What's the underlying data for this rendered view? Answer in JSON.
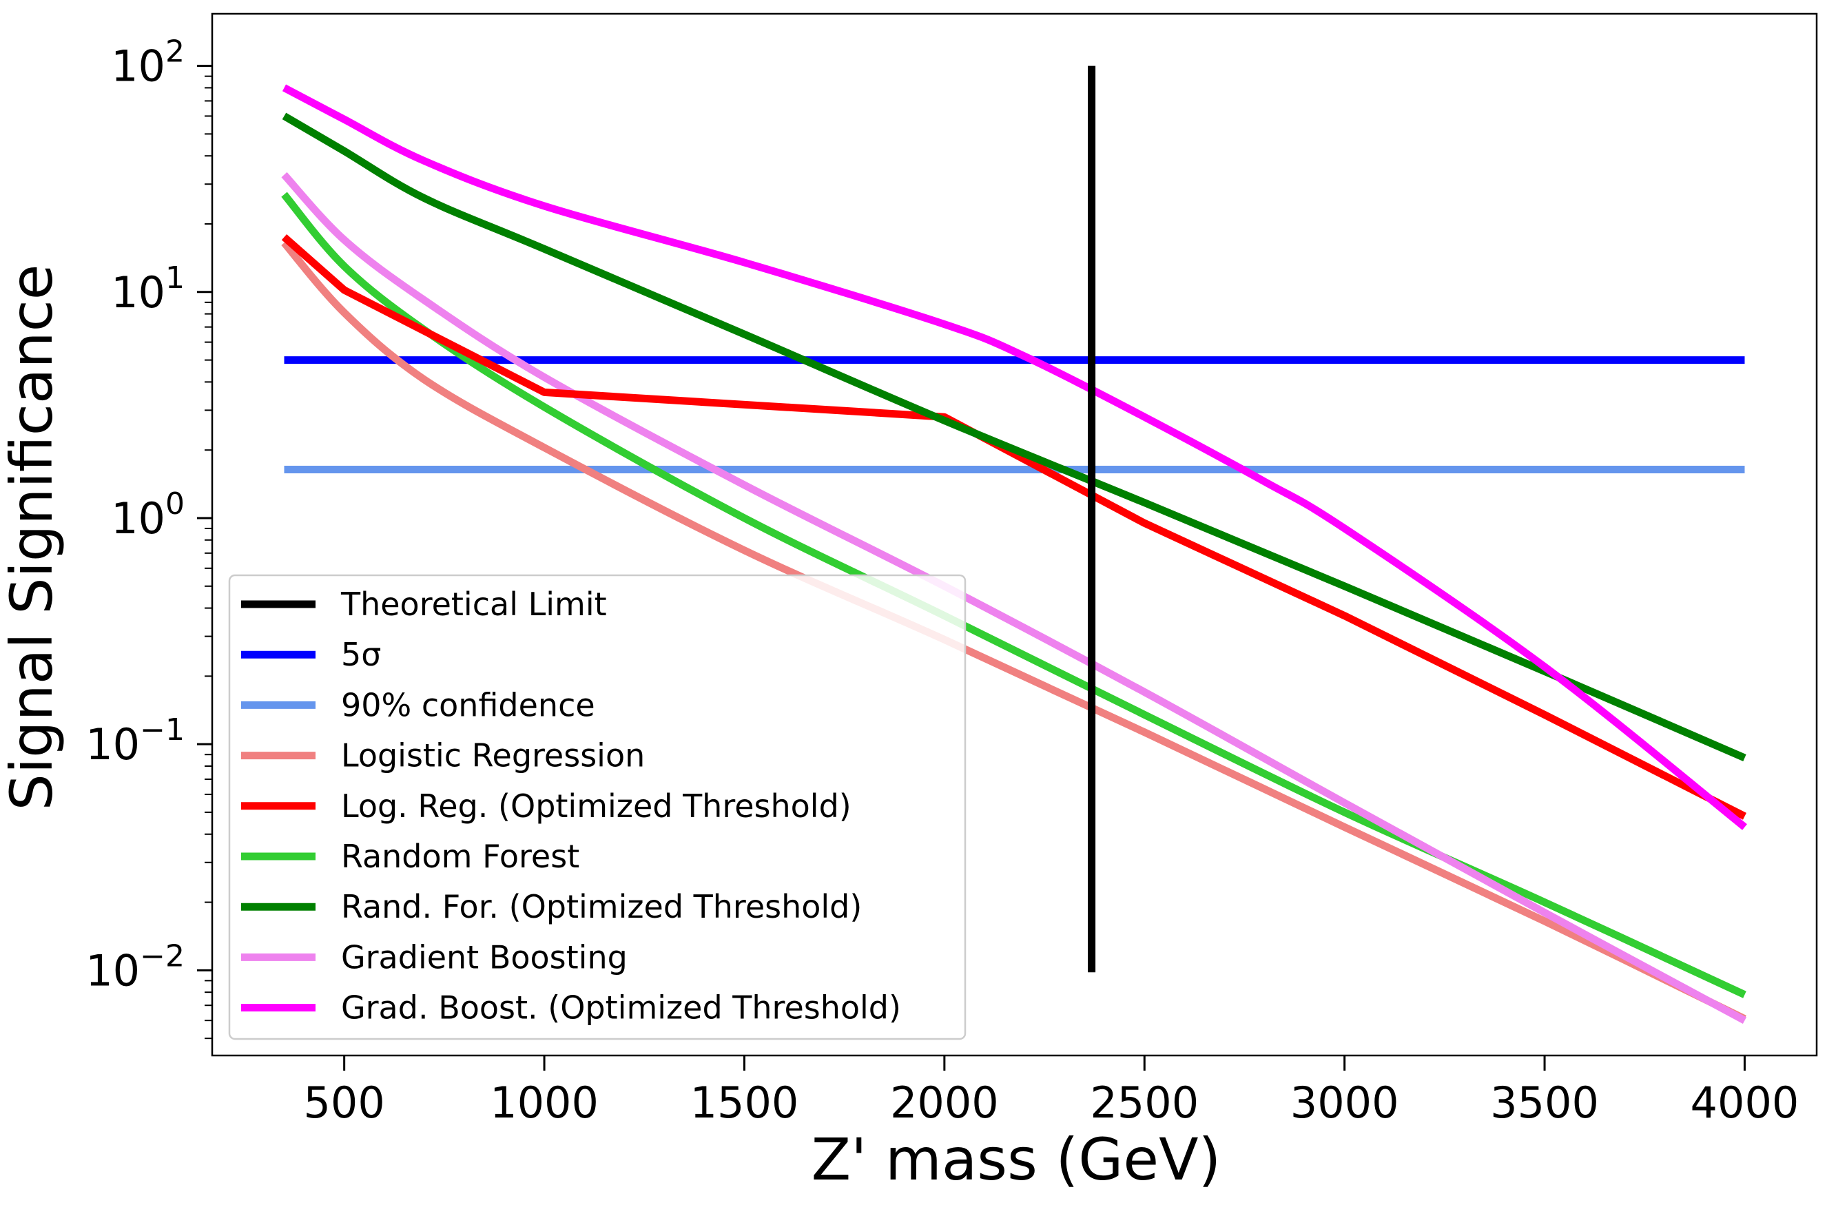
{
  "chart_data": {
    "type": "line",
    "title": "",
    "xlabel": "Z' mass (GeV)",
    "ylabel": "Signal Significance",
    "xlim": [
      170,
      4180
    ],
    "ylim": [
      0.0042,
      170
    ],
    "yscale": "log",
    "xticks": [
      500,
      1000,
      1500,
      2000,
      2500,
      3000,
      3500,
      4000
    ],
    "xtick_labels": [
      "500",
      "1000",
      "1500",
      "2000",
      "2500",
      "3000",
      "3500",
      "4000"
    ],
    "yticks": [
      {
        "value": 100,
        "base": "10",
        "exp": "2"
      },
      {
        "value": 10,
        "base": "10",
        "exp": "1"
      },
      {
        "value": 1,
        "base": "10",
        "exp": "0"
      },
      {
        "value": 0.1,
        "base": "10",
        "exp": "−1"
      },
      {
        "value": 0.01,
        "base": "10",
        "exp": "−2"
      }
    ],
    "grid": false,
    "legend_position": "lower-left",
    "series": [
      {
        "name": "Theoretical Limit",
        "color": "#000000",
        "kind": "vertical",
        "x": [
          2368,
          2368
        ],
        "y": [
          0.0098,
          100
        ]
      },
      {
        "name": "5σ",
        "color": "#0000ff",
        "x": [
          350,
          4000
        ],
        "y": [
          5,
          5
        ]
      },
      {
        "name": "90% confidence",
        "color": "#6495ed",
        "x": [
          350,
          4000
        ],
        "y": [
          1.64,
          1.64
        ]
      },
      {
        "name": "Logistic Regression",
        "color": "#f08080",
        "x": [
          350,
          500,
          700,
          1000,
          1500,
          2000,
          2500,
          3000,
          3500,
          4000
        ],
        "y": [
          16.5,
          8.1,
          4.1,
          2.05,
          0.72,
          0.29,
          0.113,
          0.043,
          0.0165,
          0.0061
        ]
      },
      {
        "name": "Log. Reg. (Optimized Threshold)",
        "color": "#ff0000",
        "x": [
          350,
          500,
          1000,
          2000,
          2500,
          3000,
          3500,
          4000
        ],
        "y": [
          17.5,
          10.2,
          3.6,
          2.8,
          0.95,
          0.37,
          0.135,
          0.048
        ]
      },
      {
        "name": "Random Forest",
        "color": "#32cd32",
        "x": [
          350,
          500,
          700,
          1000,
          1500,
          2000,
          2500,
          3000,
          3500,
          4000
        ],
        "y": [
          27,
          13,
          6.8,
          3.1,
          1.0,
          0.37,
          0.135,
          0.05,
          0.02,
          0.0078
        ]
      },
      {
        "name": "Rand. For. (Optimized Threshold)",
        "color": "#008000",
        "x": [
          350,
          500,
          700,
          1000,
          1500,
          2000,
          2500,
          3000,
          3500,
          4000
        ],
        "y": [
          60,
          42,
          26,
          15.5,
          6.5,
          2.7,
          1.17,
          0.5,
          0.21,
          0.087
        ]
      },
      {
        "name": "Gradient Boosting",
        "color": "#ee82ee",
        "x": [
          350,
          500,
          700,
          1000,
          1500,
          2000,
          2500,
          3000,
          3500,
          4000
        ],
        "y": [
          33,
          17,
          9.2,
          4.2,
          1.4,
          0.5,
          0.17,
          0.055,
          0.018,
          0.006
        ]
      },
      {
        "name": "Grad. Boost. (Optimized Threshold)",
        "color": "#ff00ff",
        "x": [
          350,
          500,
          700,
          1000,
          1500,
          2000,
          2200,
          2500,
          2800,
          3000,
          3500,
          4000
        ],
        "y": [
          80,
          58,
          38,
          24,
          13.5,
          7.2,
          5.2,
          2.8,
          1.45,
          0.9,
          0.22,
          0.043
        ]
      }
    ]
  }
}
